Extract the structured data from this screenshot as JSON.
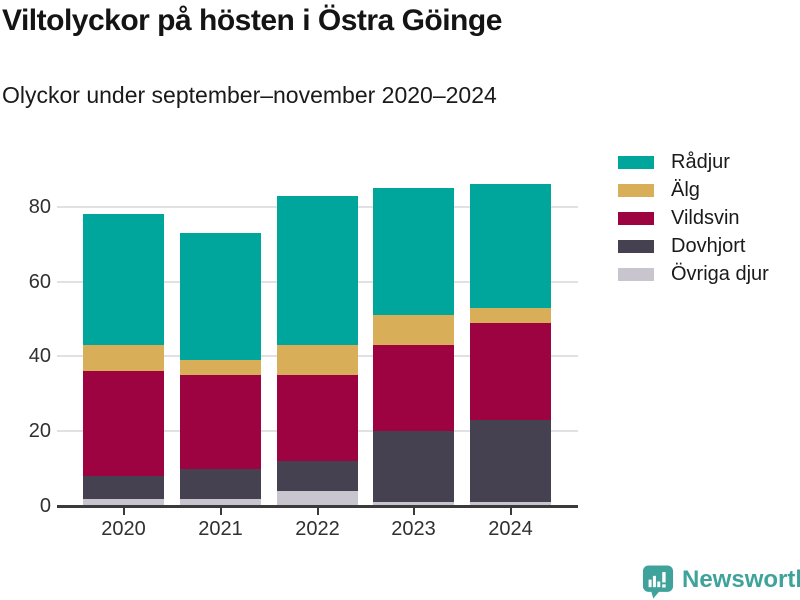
{
  "header": {
    "title": "Viltolyckor på hösten i Östra Göinge",
    "subtitle": "Olyckor under september–november 2020–2024"
  },
  "chart_data": {
    "type": "bar",
    "stacked": true,
    "title": "Viltolyckor på hösten i Östra Göinge",
    "subtitle": "Olyckor under september–november 2020–2024",
    "categories": [
      "2020",
      "2021",
      "2022",
      "2023",
      "2024"
    ],
    "series": [
      {
        "name": "Övriga djur",
        "color": "#C8C5CF",
        "values": [
          2,
          2,
          4,
          1,
          1
        ]
      },
      {
        "name": "Dovhjort",
        "color": "#454150",
        "values": [
          6,
          8,
          8,
          19,
          22
        ]
      },
      {
        "name": "Vildsvin",
        "color": "#9C0340",
        "values": [
          28,
          25,
          23,
          23,
          26
        ]
      },
      {
        "name": "Älg",
        "color": "#D9AE58",
        "values": [
          7,
          4,
          8,
          8,
          4
        ]
      },
      {
        "name": "Rådjur",
        "color": "#00A69B",
        "values": [
          35,
          34,
          40,
          34,
          33
        ]
      }
    ],
    "totals": [
      78,
      73,
      83,
      85,
      86
    ],
    "yticks": [
      0,
      20,
      40,
      60,
      80
    ],
    "ylim": [
      0,
      88
    ],
    "xlabel": "",
    "ylabel": "",
    "grid": true,
    "legend_position": "upper right",
    "legend_order": [
      "Rådjur",
      "Älg",
      "Vildsvin",
      "Dovhjort",
      "Övriga djur"
    ],
    "axis_color": "#3a3a3a",
    "grid_color": "#e1e1e3"
  },
  "footer": {
    "brand": "Newsworthy",
    "brand_color": "#3FA39B",
    "icon": "newsworthy-pin-chart-icon"
  }
}
